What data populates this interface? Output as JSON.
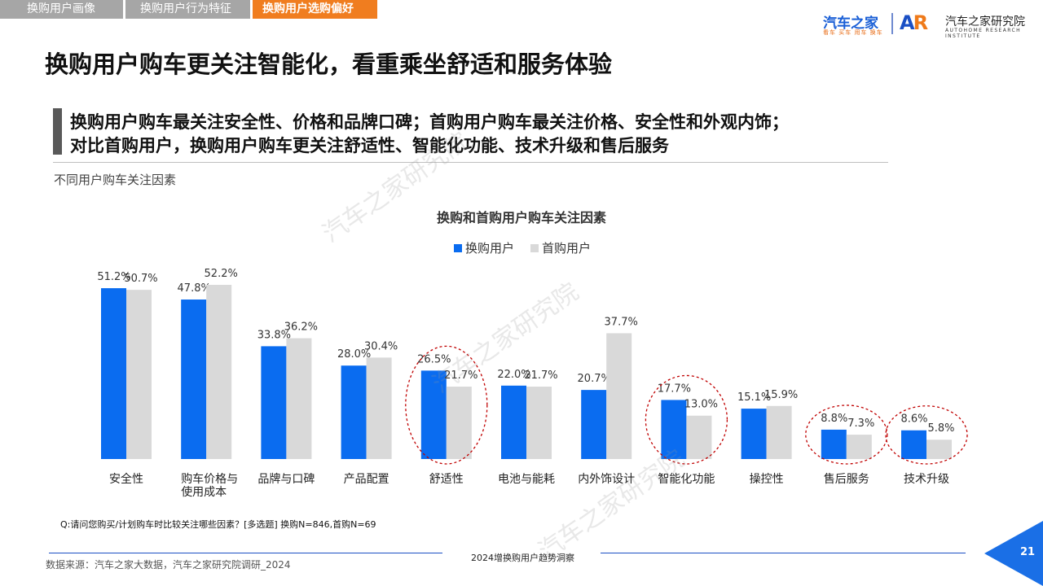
{
  "tabs": [
    "换购用户画像",
    "换购用户行为特征",
    "换购用户选购偏好"
  ],
  "logo": {
    "brand": "汽车之家",
    "brand_sub": "看车 买车 用车 换车",
    "mark_a": "A",
    "mark_r": "R",
    "institute": "汽车之家研究院",
    "institute_sub": "AUTOHOME RESEARCH INSTITUTE"
  },
  "title": "换购用户购车更关注智能化，看重乘坐舒适和服务体验",
  "subtitle_lines": [
    "换购用户购车最关注安全性、价格和品牌口碑；首购用户购车最关注价格、安全性和外观内饰；",
    "对比首购用户，换购用户购车更关注舒适性、智能化功能、技术升级和售后服务"
  ],
  "section_label": "不同用户购车关注因素",
  "chart_data": {
    "type": "bar",
    "title": "换购和首购用户购车关注因素",
    "categories": [
      "安全性",
      "购车价格与使用成本",
      "品牌与口碑",
      "产品配置",
      "舒适性",
      "电池与能耗",
      "内外饰设计",
      "智能化功能",
      "操控性",
      "售后服务",
      "技术升级"
    ],
    "category_lines": [
      [
        "安全性"
      ],
      [
        "购车价格与",
        "使用成本"
      ],
      [
        "品牌与口碑"
      ],
      [
        "产品配置"
      ],
      [
        "舒适性"
      ],
      [
        "电池与能耗"
      ],
      [
        "内外饰设计"
      ],
      [
        "智能化功能"
      ],
      [
        "操控性"
      ],
      [
        "售后服务"
      ],
      [
        "技术升级"
      ]
    ],
    "series": [
      {
        "name": "换购用户",
        "values": [
          51.2,
          47.8,
          33.8,
          28.0,
          26.5,
          22.0,
          20.7,
          17.7,
          15.1,
          8.8,
          8.6
        ],
        "labels": [
          "51.2%",
          "47.8%",
          "33.8%",
          "28.0%",
          "26.5%",
          "22.0%",
          "20.7%",
          "17.7%",
          "15.1%",
          "8.8%",
          "8.6%"
        ],
        "color": "#0a6cf0"
      },
      {
        "name": "首购用户",
        "values": [
          50.7,
          52.2,
          36.2,
          30.4,
          21.7,
          21.7,
          37.7,
          13.0,
          15.9,
          7.3,
          5.8
        ],
        "labels": [
          "50.7%",
          "52.2%",
          "36.2%",
          "30.4%",
          "21.7%",
          "21.7%",
          "37.7%",
          "13.0%",
          "15.9%",
          "7.3%",
          "5.8%"
        ],
        "color": "#d9d9d9"
      }
    ],
    "highlighted_categories": [
      "舒适性",
      "智能化功能",
      "售后服务",
      "技术升级"
    ],
    "legend": "top-center",
    "grid": false,
    "ylim": [
      0,
      55
    ]
  },
  "question": "Q:请问您购买/计划购车时比较关注哪些因素？[多选题] 换购N=846,首购N=69",
  "footer_center": "2024增换购用户趋势洞察",
  "source": "数据来源：汽车之家大数据，汽车之家研究院调研_2024",
  "page_number": "21",
  "watermark": "汽车之家研究院"
}
